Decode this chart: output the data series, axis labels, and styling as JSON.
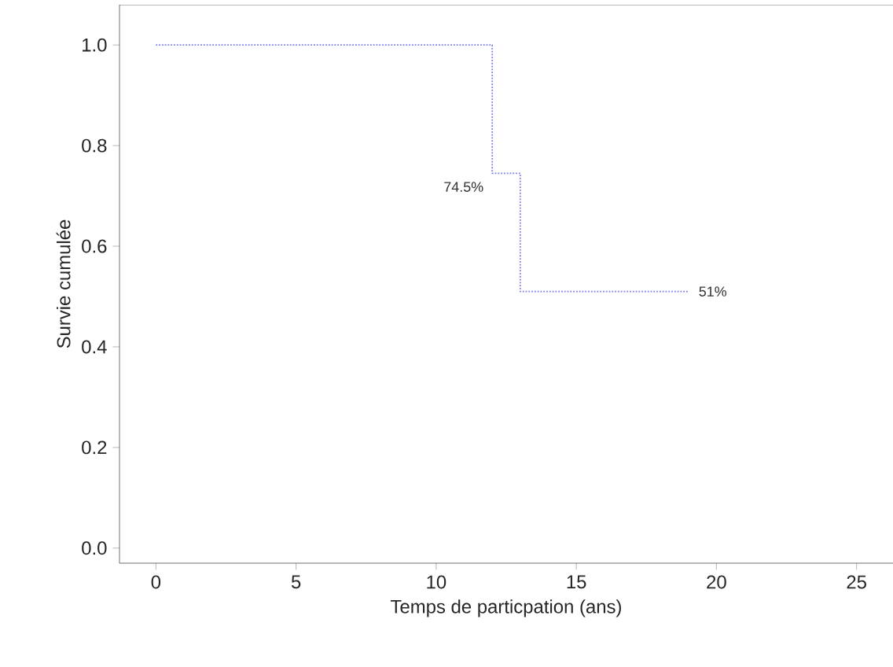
{
  "chart_data": {
    "type": "step",
    "xlabel": "Temps de particpation (ans)",
    "ylabel": "Survie cumulée",
    "x": [
      0,
      1,
      12,
      13,
      19
    ],
    "series": [
      {
        "color": "#7b7bf2",
        "values": [
          1.0,
          1.0,
          0.745,
          0.51,
          0.51
        ]
      }
    ],
    "line_style": "dotted",
    "marker": "none",
    "xlim": [
      -1.3,
      26.3
    ],
    "xticks": [
      0,
      5,
      10,
      15,
      20,
      25
    ],
    "ylim": [
      -0.03,
      1.08
    ],
    "yticks": [
      {
        "value": 0,
        "label": "0.0"
      },
      {
        "value": 0.2,
        "label": "0.2"
      },
      {
        "value": 0.4,
        "label": "0.4"
      },
      {
        "value": 0.6,
        "label": "0.6"
      },
      {
        "value": 0.8,
        "label": "0.8"
      },
      {
        "value": 1,
        "label": "1.0"
      }
    ],
    "annotations": [
      {
        "text": "74.5%",
        "x": 12,
        "y": 0.745
      },
      {
        "text": "51%",
        "x": 19,
        "y": 0.51
      }
    ],
    "grid": false
  }
}
